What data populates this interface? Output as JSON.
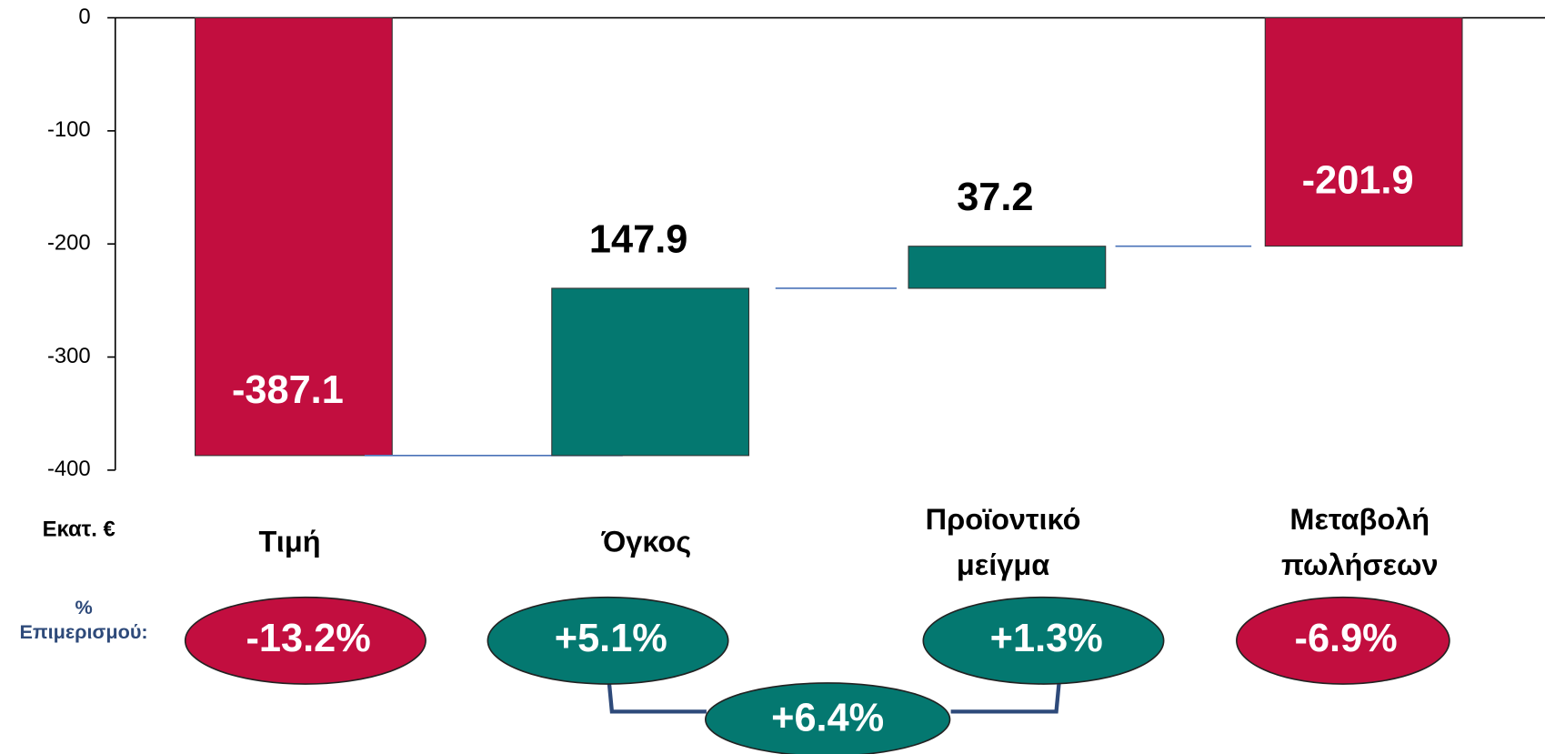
{
  "chart_data": {
    "type": "waterfall",
    "categories": [
      "Τιμή",
      "Όγκος",
      "Προϊοντικό μείγμα",
      "Μεταβολή πωλήσεων"
    ],
    "values": [
      -387.1,
      147.9,
      37.2,
      -201.9
    ],
    "colors": [
      "#c20e3f",
      "#047870",
      "#047870",
      "#c20e3f"
    ],
    "ylim": [
      -400,
      0
    ],
    "yticks": [
      0,
      -100,
      -200,
      -300,
      -400
    ],
    "unit_label": "Εκατ. €",
    "share_label": "% Επιμερισμού:",
    "shares": [
      "-13.2%",
      "+5.1%",
      "+1.3%",
      "-6.9%"
    ],
    "combined_share": "+6.4%"
  }
}
